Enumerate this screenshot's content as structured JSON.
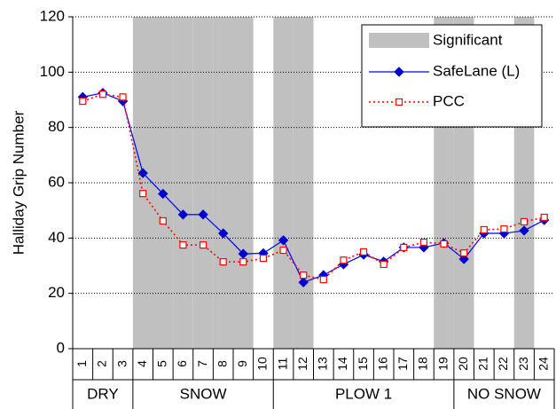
{
  "chart_data": {
    "type": "line",
    "y_label": "Halliday Grip Number",
    "categories": [
      "1",
      "2",
      "3",
      "4",
      "5",
      "6",
      "7",
      "8",
      "9",
      "10",
      "11",
      "12",
      "13",
      "14",
      "15",
      "16",
      "17",
      "18",
      "19",
      "20",
      "21",
      "22",
      "23",
      "24"
    ],
    "category_groups": [
      "DRY",
      "DRY",
      "DRY",
      "SNOW",
      "SNOW",
      "SNOW",
      "SNOW",
      "SNOW",
      "SNOW",
      "SNOW",
      "PLOW 1",
      "PLOW 1",
      "PLOW 1",
      "PLOW 1",
      "PLOW 1",
      "PLOW 1",
      "PLOW 1",
      "PLOW 1",
      "PLOW 1",
      "NO SNOW",
      "NO SNOW",
      "NO SNOW",
      "NO SNOW",
      "NO SNOW"
    ],
    "shading": {
      "name": "Significant",
      "color": "#c0c0c0",
      "values": [
        false,
        false,
        false,
        true,
        true,
        true,
        true,
        true,
        true,
        false,
        true,
        true,
        false,
        false,
        false,
        false,
        false,
        false,
        true,
        true,
        false,
        false,
        true,
        false
      ]
    },
    "series": [
      {
        "name": "SafeLane (L)",
        "color": "#0000ff",
        "marker": "diamond",
        "values": [
          91,
          92.5,
          89.5,
          63.5,
          56,
          48.5,
          48.5,
          41.7,
          34.3,
          34.5,
          39.2,
          24,
          26.6,
          30.5,
          34,
          31.5,
          36.6,
          36.6,
          38.2,
          32.4,
          41.7,
          41.7,
          42.7,
          46.5
        ]
      },
      {
        "name": "PCC",
        "color": "#ff0000",
        "marker": "square",
        "dashed": true,
        "values": [
          89.5,
          92,
          91,
          56.1,
          46.2,
          37.5,
          37.5,
          31.4,
          31.4,
          32.7,
          35.6,
          26.6,
          25,
          32,
          35,
          30.5,
          36.6,
          38.5,
          37.9,
          34.6,
          43,
          43.3,
          45.9,
          47.5
        ]
      }
    ],
    "ylim": [
      0,
      120
    ],
    "yticks": [
      0,
      20,
      40,
      60,
      80,
      100,
      120
    ],
    "grid": true,
    "legend": "top-right"
  }
}
